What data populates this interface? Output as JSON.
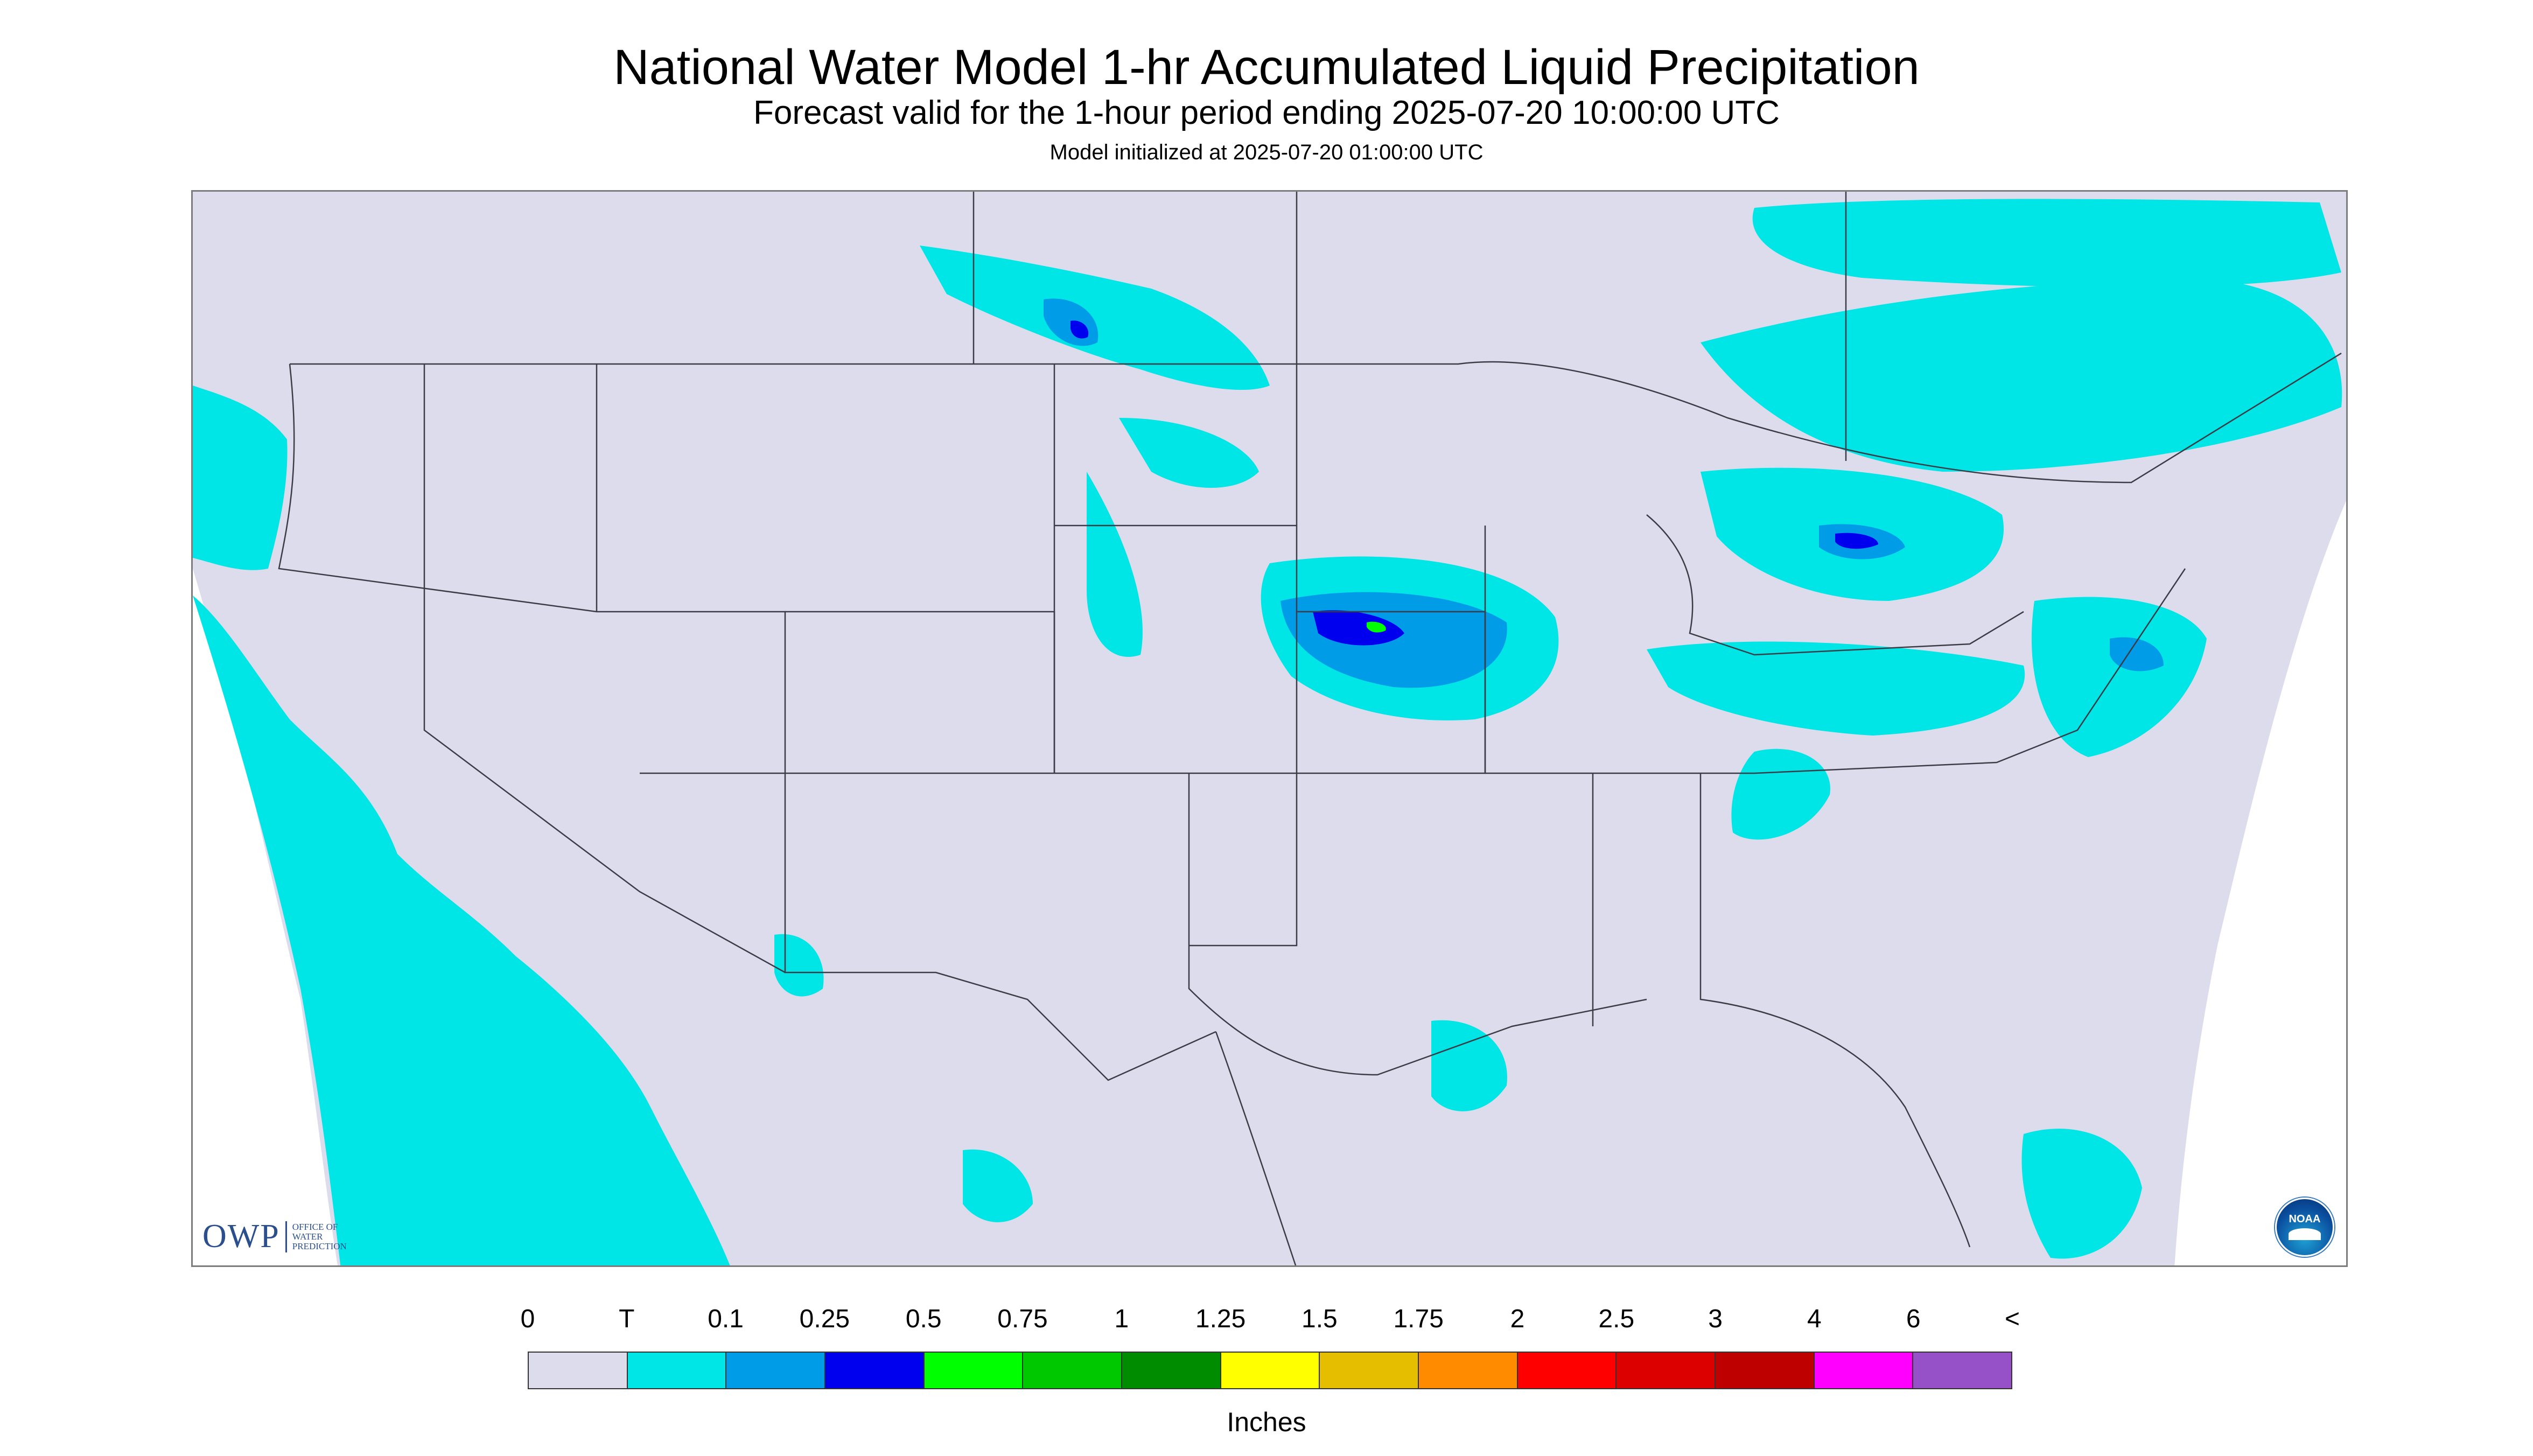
{
  "title": "National Water Model 1-hr Accumulated Liquid Precipitation",
  "subtitle": "Forecast valid for the 1-hour period ending 2025-07-20 10:00:00 UTC",
  "model_init": "Model initialized at 2025-07-20 01:00:00 UTC",
  "logos": {
    "owp_word": "OWP",
    "owp_text": "OFFICE OF\nWATER\nPREDICTION",
    "noaa_text": "NOAA"
  },
  "legend": {
    "units": "Inches",
    "labels": [
      "0",
      "T",
      "0.1",
      "0.25",
      "0.5",
      "0.75",
      "1",
      "1.25",
      "1.5",
      "1.75",
      "2",
      "2.5",
      "3",
      "4",
      "6",
      "<"
    ],
    "colors": [
      "#dcdced",
      "#00e5e5",
      "#009ce8",
      "#0000ee",
      "#00ff00",
      "#00c800",
      "#008c00",
      "#ffff00",
      "#e6be00",
      "#ff8c00",
      "#ff0000",
      "#dc0000",
      "#be0000",
      "#ff00ff",
      "#9650c8"
    ]
  },
  "colors": {
    "no_data": "#ffffff",
    "land_background": "#dcdced",
    "trace": "#00e5e5",
    "light": "#009ce8",
    "moderate": "#0000ee",
    "heavy": "#00ff00"
  }
}
